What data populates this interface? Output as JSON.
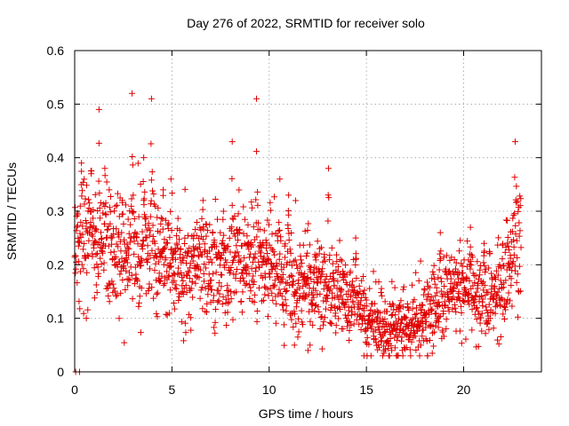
{
  "chart_data": {
    "type": "scatter",
    "title": "Day 276 of 2022, SRMTID for receiver solo",
    "xlabel": "GPS time / hours",
    "ylabel": "SRMTID / TECUs",
    "xlim": [
      0,
      24
    ],
    "ylim": [
      0,
      0.6
    ],
    "x_ticks": [
      0,
      5,
      10,
      15,
      20
    ],
    "x_tick_labels": [
      "0",
      "5",
      "10",
      "15",
      "20"
    ],
    "y_ticks": [
      0,
      0.1,
      0.2,
      0.3,
      0.4,
      0.5,
      0.6
    ],
    "y_tick_labels": [
      "0",
      "0.1",
      "0.2",
      "0.3",
      "0.4",
      "0.5",
      "0.6"
    ],
    "grid": true,
    "marker": "plus",
    "series": [
      {
        "name": "SRMTID",
        "color": "#e00000",
        "x_start": 0.0,
        "x_end": 22.95,
        "baseline": [
          [
            0,
            0.23
          ],
          [
            0.5,
            0.25
          ],
          [
            1,
            0.25
          ],
          [
            1.5,
            0.24
          ],
          [
            2,
            0.22
          ],
          [
            2.5,
            0.21
          ],
          [
            3,
            0.22
          ],
          [
            3.5,
            0.21
          ],
          [
            4,
            0.21
          ],
          [
            4.5,
            0.2
          ],
          [
            5,
            0.2
          ],
          [
            5.5,
            0.18
          ],
          [
            6,
            0.19
          ],
          [
            6.5,
            0.2
          ],
          [
            7,
            0.19
          ],
          [
            7.5,
            0.18
          ],
          [
            8,
            0.19
          ],
          [
            8.5,
            0.21
          ],
          [
            9,
            0.21
          ],
          [
            9.5,
            0.21
          ],
          [
            10,
            0.2
          ],
          [
            10.5,
            0.17
          ],
          [
            11,
            0.16
          ],
          [
            11.5,
            0.16
          ],
          [
            12,
            0.17
          ],
          [
            12.5,
            0.15
          ],
          [
            13,
            0.15
          ],
          [
            13.5,
            0.15
          ],
          [
            14,
            0.14
          ],
          [
            14.5,
            0.12
          ],
          [
            15,
            0.1
          ],
          [
            15.5,
            0.08
          ],
          [
            16,
            0.08
          ],
          [
            16.5,
            0.08
          ],
          [
            17,
            0.08
          ],
          [
            17.5,
            0.08
          ],
          [
            18,
            0.1
          ],
          [
            18.5,
            0.12
          ],
          [
            19,
            0.14
          ],
          [
            19.5,
            0.15
          ],
          [
            20,
            0.13
          ],
          [
            20.5,
            0.13
          ],
          [
            21,
            0.12
          ],
          [
            21.5,
            0.14
          ],
          [
            22,
            0.17
          ],
          [
            22.5,
            0.22
          ],
          [
            22.95,
            0.24
          ]
        ],
        "spread": [
          [
            0,
            0.05
          ],
          [
            5,
            0.055
          ],
          [
            10,
            0.05
          ],
          [
            13,
            0.04
          ],
          [
            15.5,
            0.03
          ],
          [
            17,
            0.025
          ],
          [
            19,
            0.04
          ],
          [
            21,
            0.04
          ],
          [
            22.95,
            0.05
          ]
        ],
        "peaks": [
          {
            "x": 0.35,
            "y": 0.39
          },
          {
            "x": 0.85,
            "y": 0.37
          },
          {
            "x": 1.25,
            "y": 0.49
          },
          {
            "x": 1.55,
            "y": 0.38
          },
          {
            "x": 2.45,
            "y": 0.32
          },
          {
            "x": 2.95,
            "y": 0.52
          },
          {
            "x": 3.55,
            "y": 0.4
          },
          {
            "x": 3.95,
            "y": 0.51
          },
          {
            "x": 4.55,
            "y": 0.34
          },
          {
            "x": 4.95,
            "y": 0.36
          },
          {
            "x": 6.6,
            "y": 0.32
          },
          {
            "x": 7.65,
            "y": 0.3
          },
          {
            "x": 8.1,
            "y": 0.43
          },
          {
            "x": 9.35,
            "y": 0.51
          },
          {
            "x": 10.55,
            "y": 0.36
          },
          {
            "x": 11.0,
            "y": 0.33
          },
          {
            "x": 13.05,
            "y": 0.38
          },
          {
            "x": 14.45,
            "y": 0.25
          },
          {
            "x": 18.8,
            "y": 0.26
          },
          {
            "x": 20.35,
            "y": 0.27
          },
          {
            "x": 21.05,
            "y": 0.24
          },
          {
            "x": 22.65,
            "y": 0.43
          }
        ],
        "outliers": [
          {
            "x": 0.05,
            "y": 0.0
          },
          {
            "x": 0.25,
            "y": 0.0
          },
          {
            "x": 0.6,
            "y": 0.1
          },
          {
            "x": 15.9,
            "y": 0.035
          },
          {
            "x": 16.3,
            "y": 0.04
          },
          {
            "x": 17.8,
            "y": 0.05
          },
          {
            "x": 11.3,
            "y": 0.05
          },
          {
            "x": 12.1,
            "y": 0.05
          }
        ]
      }
    ]
  }
}
